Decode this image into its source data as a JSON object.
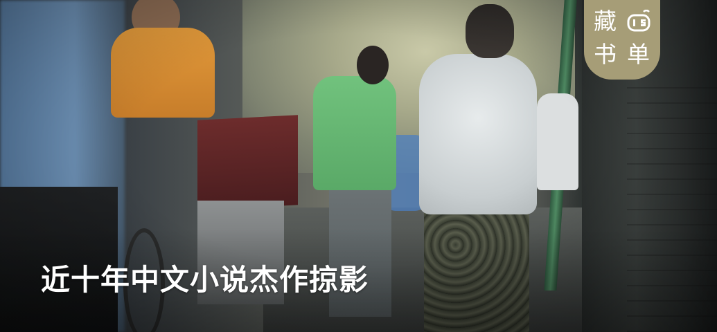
{
  "badge": {
    "char1": "藏",
    "char2": "书",
    "char3": "单",
    "logo_icon": "cafe-logo-icon",
    "color": "#a69d77"
  },
  "title": "近十年中文小说杰作掠影"
}
